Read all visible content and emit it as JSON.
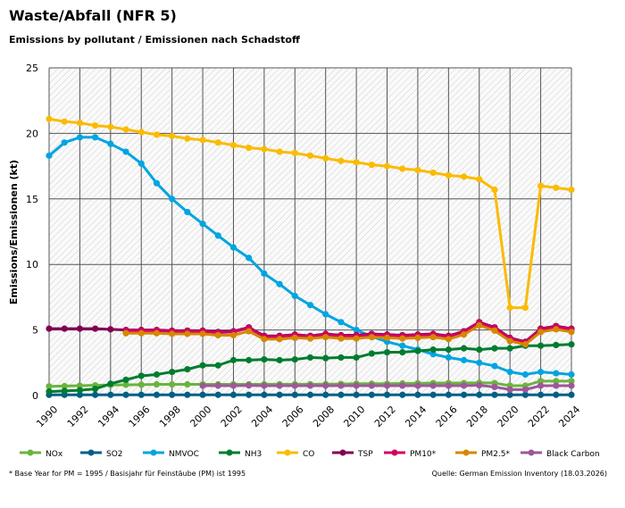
{
  "title": "Waste/Abfall (NFR 5)",
  "subtitle": "Emissions by pollutant / Emissionen nach Schadstoff",
  "footnote": "* Base Year for PM = 1995 / Basisjahr für Feinstäube (PM) ist 1995",
  "source": "Quelle: German Emission Inventory (18.03.2026)",
  "chart_data": {
    "type": "line",
    "ylabel": "Emissions/Emissionen (kt)",
    "xlabel": "",
    "ylim": [
      0,
      25
    ],
    "yticks": [
      0,
      5,
      10,
      15,
      20,
      25
    ],
    "xlim": [
      1990,
      2024
    ],
    "xticks": [
      1990,
      1992,
      1994,
      1996,
      1998,
      2000,
      2002,
      2004,
      2006,
      2008,
      2010,
      2012,
      2014,
      2016,
      2018,
      2020,
      2022,
      2024
    ],
    "grid": true,
    "legend": "bottom",
    "x": [
      1990,
      1991,
      1992,
      1993,
      1994,
      1995,
      1996,
      1997,
      1998,
      1999,
      2000,
      2001,
      2002,
      2003,
      2004,
      2005,
      2006,
      2007,
      2008,
      2009,
      2010,
      2011,
      2012,
      2013,
      2014,
      2015,
      2016,
      2017,
      2018,
      2019,
      2020,
      2021,
      2022,
      2023,
      2024
    ],
    "series": [
      {
        "name": "NOx",
        "color": "#6ab43e",
        "values": [
          0.7,
          0.72,
          0.75,
          0.78,
          0.8,
          0.82,
          0.83,
          0.85,
          0.85,
          0.85,
          0.85,
          0.85,
          0.85,
          0.85,
          0.86,
          0.86,
          0.86,
          0.86,
          0.87,
          0.88,
          0.9,
          0.9,
          0.9,
          0.92,
          0.93,
          0.95,
          0.95,
          0.95,
          0.97,
          0.95,
          0.75,
          0.75,
          1.1,
          1.1,
          1.1
        ]
      },
      {
        "name": "SO2",
        "color": "#005f85",
        "values": [
          0.05,
          0.05,
          0.05,
          0.05,
          0.05,
          0.05,
          0.05,
          0.05,
          0.05,
          0.05,
          0.05,
          0.05,
          0.05,
          0.05,
          0.05,
          0.05,
          0.05,
          0.05,
          0.05,
          0.05,
          0.05,
          0.05,
          0.05,
          0.05,
          0.05,
          0.05,
          0.05,
          0.05,
          0.05,
          0.05,
          0.05,
          0.05,
          0.05,
          0.05,
          0.05
        ]
      },
      {
        "name": "NMVOC",
        "color": "#00a5e1",
        "values": [
          18.3,
          19.3,
          19.7,
          19.7,
          19.2,
          18.6,
          17.7,
          16.2,
          15.0,
          14.0,
          13.1,
          12.2,
          11.3,
          10.5,
          9.3,
          8.5,
          7.6,
          6.9,
          6.2,
          5.6,
          5.0,
          4.5,
          4.1,
          3.8,
          3.5,
          3.15,
          2.9,
          2.7,
          2.5,
          2.25,
          1.8,
          1.6,
          1.8,
          1.7,
          1.6
        ]
      },
      {
        "name": "NH3",
        "color": "#007c30",
        "values": [
          0.3,
          0.35,
          0.4,
          0.5,
          0.9,
          1.2,
          1.5,
          1.6,
          1.8,
          2.0,
          2.3,
          2.3,
          2.7,
          2.7,
          2.75,
          2.7,
          2.75,
          2.9,
          2.85,
          2.9,
          2.9,
          3.2,
          3.3,
          3.3,
          3.4,
          3.5,
          3.5,
          3.6,
          3.5,
          3.6,
          3.6,
          3.8,
          3.8,
          3.85,
          3.9
        ]
      },
      {
        "name": "CO",
        "color": "#fabb00",
        "values": [
          21.1,
          20.9,
          20.8,
          20.6,
          20.5,
          20.3,
          20.1,
          19.9,
          19.8,
          19.6,
          19.5,
          19.3,
          19.1,
          18.9,
          18.8,
          18.6,
          18.5,
          18.3,
          18.1,
          17.9,
          17.8,
          17.6,
          17.5,
          17.3,
          17.2,
          17.0,
          16.8,
          16.7,
          16.5,
          15.7,
          6.7,
          6.7,
          16.0,
          15.85,
          15.7
        ]
      },
      {
        "name": "TSP",
        "color": "#830053",
        "values": [
          5.1,
          5.1,
          5.1,
          5.1,
          5.05,
          5.0,
          5.0,
          5.0,
          4.95,
          4.95,
          4.95,
          4.85,
          4.9,
          5.2,
          4.55,
          4.55,
          4.65,
          4.55,
          4.7,
          4.6,
          4.6,
          4.7,
          4.65,
          4.6,
          4.65,
          4.7,
          4.55,
          4.9,
          5.6,
          5.2,
          4.4,
          4.1,
          5.1,
          5.3,
          5.1
        ]
      },
      {
        "name": "PM10*",
        "color": "#d2005f",
        "values": [
          null,
          null,
          null,
          null,
          null,
          4.95,
          4.95,
          4.95,
          4.9,
          4.9,
          4.9,
          4.8,
          4.85,
          5.15,
          4.5,
          4.5,
          4.6,
          4.5,
          4.65,
          4.55,
          4.55,
          4.65,
          4.6,
          4.55,
          4.6,
          4.65,
          4.5,
          4.85,
          5.55,
          5.15,
          4.35,
          4.05,
          5.05,
          5.25,
          5.05
        ]
      },
      {
        "name": "PM2.5*",
        "color": "#d78700",
        "values": [
          null,
          null,
          null,
          null,
          null,
          4.75,
          4.75,
          4.75,
          4.7,
          4.7,
          4.7,
          4.6,
          4.6,
          4.9,
          4.3,
          4.3,
          4.4,
          4.35,
          4.45,
          4.35,
          4.35,
          4.45,
          4.4,
          4.35,
          4.4,
          4.45,
          4.3,
          4.65,
          5.35,
          4.95,
          4.15,
          3.9,
          4.85,
          5.05,
          4.85
        ]
      },
      {
        "name": "Black Carbon",
        "color": "#9d579a",
        "values": [
          null,
          null,
          null,
          null,
          null,
          null,
          null,
          null,
          null,
          null,
          0.75,
          0.75,
          0.75,
          0.77,
          0.75,
          0.75,
          0.75,
          0.75,
          0.75,
          0.75,
          0.75,
          0.75,
          0.75,
          0.75,
          0.75,
          0.75,
          0.75,
          0.75,
          0.78,
          0.65,
          0.45,
          0.45,
          0.75,
          0.75,
          0.75
        ]
      }
    ]
  }
}
